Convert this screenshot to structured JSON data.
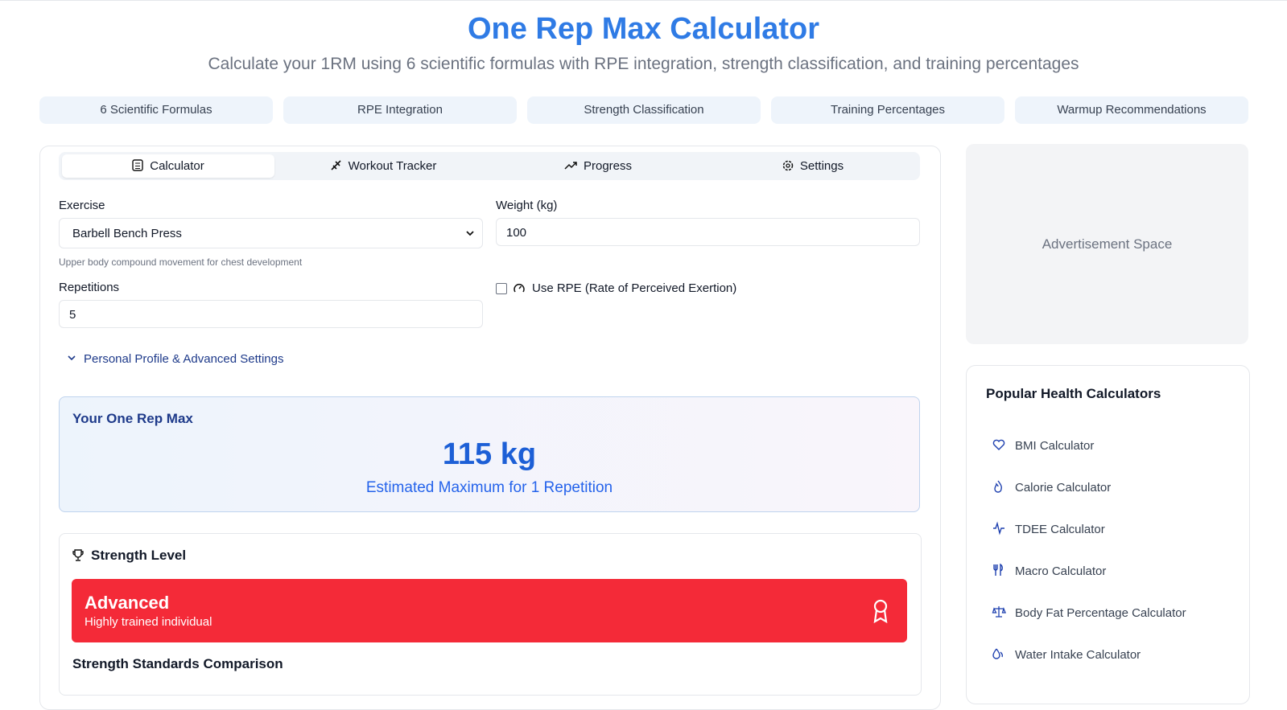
{
  "header": {
    "title": "One Rep Max Calculator",
    "subtitle": "Calculate your 1RM using 6 scientific formulas with RPE integration, strength classification, and training percentages"
  },
  "features": [
    "6 Scientific Formulas",
    "RPE Integration",
    "Strength Classification",
    "Training Percentages",
    "Warmup Recommendations"
  ],
  "tabs": [
    "Calculator",
    "Workout Tracker",
    "Progress",
    "Settings"
  ],
  "form": {
    "exercise_label": "Exercise",
    "exercise_value": "Barbell Bench Press",
    "exercise_hint": "Upper body compound movement for chest development",
    "weight_label": "Weight (kg)",
    "weight_value": "100",
    "reps_label": "Repetitions",
    "reps_value": "5",
    "rpe_label": "Use RPE (Rate of Perceived Exertion)",
    "advanced": "Personal Profile & Advanced Settings"
  },
  "result": {
    "title": "Your One Rep Max",
    "value": "115 kg",
    "caption": "Estimated Maximum for 1 Repetition"
  },
  "strength": {
    "title": "Strength Level",
    "level": "Advanced",
    "description": "Highly trained individual",
    "comparison_title": "Strength Standards Comparison"
  },
  "sidebar": {
    "ad": "Advertisement Space",
    "title": "Popular Health Calculators",
    "links": [
      "BMI Calculator",
      "Calorie Calculator",
      "TDEE Calculator",
      "Macro Calculator",
      "Body Fat Percentage Calculator",
      "Water Intake Calculator"
    ]
  }
}
